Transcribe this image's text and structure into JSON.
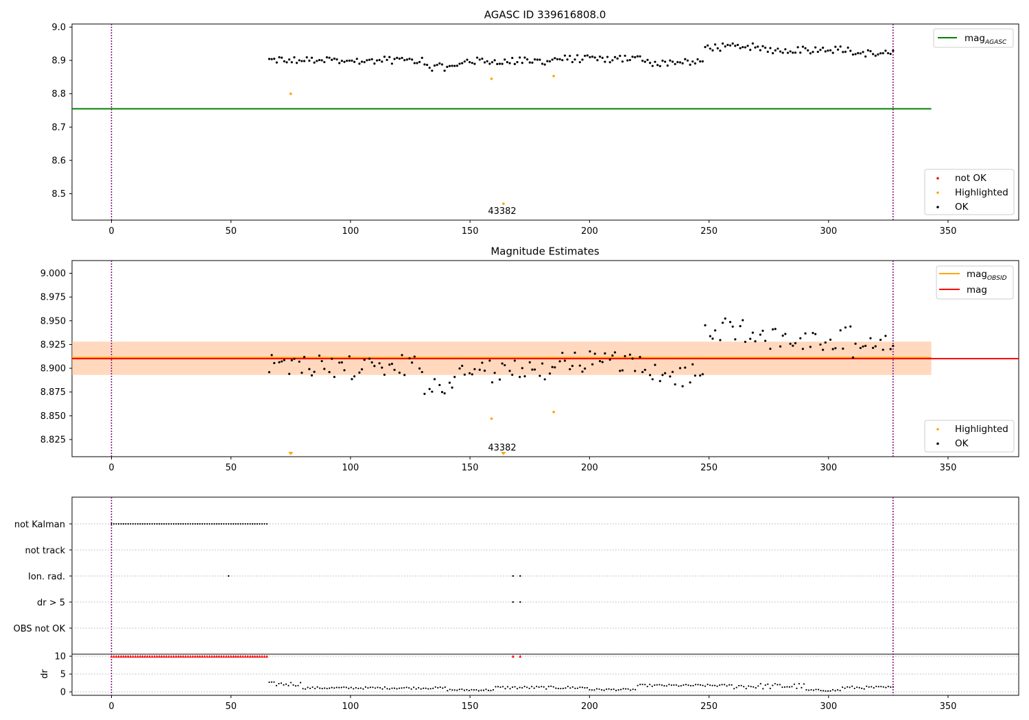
{
  "figure": {
    "panel1": {
      "title": "AGASC ID 339616808.0",
      "x_ticks": [
        0,
        50,
        100,
        150,
        200,
        250,
        300,
        350
      ],
      "y_ticks": [
        "8.5",
        "8.6",
        "8.7",
        "8.8",
        "8.9",
        "9.0"
      ],
      "legend_line": {
        "label": "mag",
        "subscript": "AGASC",
        "color": "#008000"
      },
      "legend_points": [
        {
          "label": "not OK",
          "color": "#ff0000"
        },
        {
          "label": "Highlighted",
          "color": "#ffa500"
        },
        {
          "label": "OK",
          "color": "#000000"
        }
      ],
      "annotation": "43382"
    },
    "panel2": {
      "title": "Magnitude Estimates",
      "x_ticks": [
        0,
        50,
        100,
        150,
        200,
        250,
        300,
        350
      ],
      "y_ticks": [
        "8.825",
        "8.850",
        "8.875",
        "8.900",
        "8.925",
        "8.950",
        "8.975",
        "9.000"
      ],
      "legend_lines": [
        {
          "label": "mag",
          "subscript": "OBSID",
          "color": "#ffa500"
        },
        {
          "label": "mag",
          "subscript": "",
          "color": "#ff0000"
        }
      ],
      "legend_points": [
        {
          "label": "Highlighted",
          "color": "#ffa500"
        },
        {
          "label": "OK",
          "color": "#000000"
        }
      ],
      "annotation": "43382"
    },
    "panel3": {
      "flag_rows": [
        "not Kalman",
        "not track",
        "Ion. rad.",
        "dr > 5",
        "OBS not OK"
      ],
      "dr_ylabel": "dr",
      "dr_ticks": [
        "0",
        "5",
        "10"
      ],
      "x_ticks": [
        0,
        50,
        100,
        150,
        200,
        250,
        300,
        350
      ]
    }
  },
  "chart_data": [
    {
      "type": "scatter",
      "title": "AGASC ID 339616808.0",
      "xlim": [
        -16,
        380
      ],
      "ylim": [
        8.42,
        9.005
      ],
      "vertical_lines_x": [
        0,
        327
      ],
      "reference_lines": [
        {
          "name": "mag_AGASC",
          "y": 8.755,
          "x_range": [
            -16,
            343
          ]
        }
      ],
      "series": [
        {
          "name": "OK",
          "color": "#000000",
          "x_range": [
            66,
            327
          ],
          "n": 251,
          "base_y": 8.898,
          "approx_y_range": [
            8.873,
            8.96
          ]
        },
        {
          "name": "Highlighted",
          "color": "#ffa500",
          "x": [
            75,
            159,
            164,
            185
          ],
          "y": [
            8.8,
            8.845,
            8.47,
            8.853
          ]
        },
        {
          "name": "not OK",
          "color": "#ff0000",
          "x": [],
          "y": []
        }
      ],
      "annotations": [
        {
          "text": "43382",
          "x": 164,
          "y": 8.45
        }
      ]
    },
    {
      "type": "scatter",
      "title": "Magnitude Estimates",
      "xlim": [
        -16,
        380
      ],
      "ylim": [
        8.807,
        9.014
      ],
      "vertical_lines_x": [
        0,
        327
      ],
      "reference_lines": [
        {
          "name": "mag_OBSID",
          "y": 8.9105,
          "x_range": [
            -16,
            343
          ],
          "band": [
            8.893,
            8.928
          ]
        },
        {
          "name": "mag",
          "y": 8.9105,
          "x_range": [
            -16,
            343
          ],
          "band": [
            8.893,
            8.928
          ]
        }
      ],
      "series": [
        {
          "name": "OK",
          "color": "#000000",
          "x_range": [
            66,
            327
          ],
          "n": 190,
          "base_y": 8.9,
          "approx_y_range": [
            8.873,
            8.958
          ]
        },
        {
          "name": "Highlighted",
          "color": "#ffa500",
          "x": [
            159,
            185
          ],
          "y": [
            8.847,
            8.854
          ]
        }
      ],
      "offscale_markers": [
        {
          "x": 75
        },
        {
          "x": 164
        }
      ],
      "annotations": [
        {
          "text": "43382",
          "x": 164
        }
      ]
    },
    {
      "type": "scatter",
      "title": "",
      "xlim": [
        -16,
        380
      ],
      "vertical_lines_x": [
        0,
        327
      ],
      "flag_rows": [
        {
          "name": "not Kalman",
          "x_range": [
            0,
            65
          ],
          "step": 1
        },
        {
          "name": "not track",
          "x": []
        },
        {
          "name": "Ion. rad.",
          "x": [
            49,
            168,
            171
          ]
        },
        {
          "name": "dr > 5",
          "x": [
            168,
            171
          ]
        },
        {
          "name": "OBS not OK",
          "x": []
        }
      ],
      "dr": {
        "ylabel": "dr",
        "ylim": [
          -0.3,
          10.5
        ],
        "clipped_x": [
          0,
          65,
          168,
          171
        ],
        "clipped_value": 10,
        "x_range": [
          66,
          327
        ],
        "approx_y_range": [
          0.1,
          3.0
        ]
      }
    }
  ]
}
